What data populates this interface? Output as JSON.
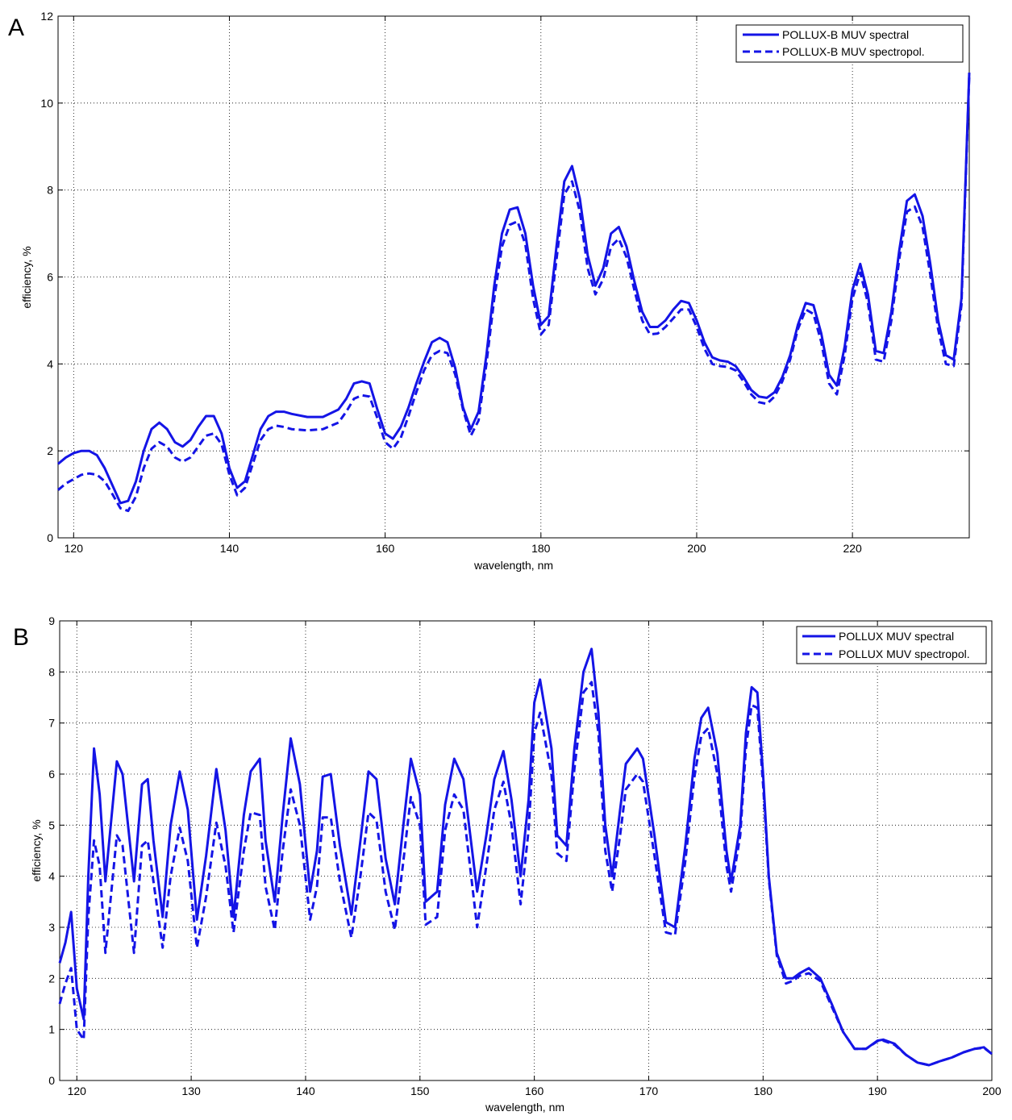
{
  "chart_data": [
    {
      "type": "line",
      "panel_label": "A",
      "xlabel": "wavelength, nm",
      "ylabel": "efficiency, %",
      "xlim": [
        118,
        235
      ],
      "ylim": [
        0,
        12
      ],
      "xticks": [
        120,
        140,
        160,
        180,
        200,
        220
      ],
      "yticks": [
        0,
        2,
        4,
        6,
        8,
        10,
        12
      ],
      "grid": true,
      "legend_position": "top-right",
      "color": "#1414e6",
      "series": [
        {
          "name": "POLLUX-B MUV spectral",
          "style": "solid",
          "x": [
            118,
            119,
            120,
            121,
            122,
            123,
            124,
            125,
            126,
            127,
            128,
            129,
            130,
            131,
            132,
            133,
            134,
            135,
            136,
            137,
            138,
            139,
            140,
            141,
            142,
            143,
            144,
            145,
            146,
            147,
            148,
            150,
            152,
            154,
            155,
            156,
            157,
            158,
            159,
            160,
            161,
            162,
            163,
            164,
            165,
            166,
            167,
            168,
            169,
            170,
            171,
            172,
            173,
            174,
            175,
            176,
            177,
            178,
            179,
            180,
            181,
            182,
            183,
            184,
            185,
            186,
            187,
            188,
            189,
            190,
            191,
            192,
            193,
            194,
            195,
            196,
            197,
            198,
            199,
            200,
            201,
            202,
            203,
            204,
            205,
            206,
            207,
            208,
            209,
            210,
            211,
            212,
            213,
            214,
            215,
            216,
            217,
            218,
            219,
            220,
            221,
            222,
            223,
            224,
            225,
            226,
            227,
            228,
            229,
            230,
            231,
            232,
            233,
            234,
            235
          ],
          "values": [
            1.7,
            1.85,
            1.95,
            2.0,
            2.0,
            1.9,
            1.6,
            1.2,
            0.8,
            0.85,
            1.3,
            2.0,
            2.5,
            2.65,
            2.5,
            2.2,
            2.1,
            2.25,
            2.55,
            2.8,
            2.8,
            2.4,
            1.6,
            1.15,
            1.3,
            1.9,
            2.5,
            2.8,
            2.9,
            2.9,
            2.85,
            2.78,
            2.78,
            2.95,
            3.2,
            3.55,
            3.6,
            3.55,
            2.95,
            2.4,
            2.28,
            2.55,
            3.0,
            3.55,
            4.05,
            4.5,
            4.6,
            4.5,
            3.9,
            3.0,
            2.5,
            2.9,
            4.2,
            5.8,
            7.0,
            7.55,
            7.6,
            7.0,
            5.8,
            4.9,
            5.1,
            6.7,
            8.2,
            8.55,
            7.8,
            6.5,
            5.8,
            6.2,
            7.0,
            7.15,
            6.7,
            5.9,
            5.2,
            4.85,
            4.85,
            5.0,
            5.25,
            5.45,
            5.4,
            5.0,
            4.5,
            4.15,
            4.08,
            4.05,
            3.95,
            3.7,
            3.4,
            3.25,
            3.22,
            3.35,
            3.7,
            4.2,
            4.9,
            5.4,
            5.35,
            4.7,
            3.75,
            3.5,
            4.4,
            5.7,
            6.3,
            5.6,
            4.3,
            4.25,
            5.2,
            6.6,
            7.75,
            7.9,
            7.4,
            6.3,
            5.0,
            4.2,
            4.1,
            5.5,
            10.7
          ]
        },
        {
          "name": "POLLUX-B MUV spectropol.",
          "style": "dashed",
          "x": [
            118,
            119,
            120,
            121,
            122,
            123,
            124,
            125,
            126,
            127,
            128,
            129,
            130,
            131,
            132,
            133,
            134,
            135,
            136,
            137,
            138,
            139,
            140,
            141,
            142,
            143,
            144,
            145,
            146,
            147,
            148,
            150,
            152,
            154,
            155,
            156,
            157,
            158,
            159,
            160,
            161,
            162,
            163,
            164,
            165,
            166,
            167,
            168,
            169,
            170,
            171,
            172,
            173,
            174,
            175,
            176,
            177,
            178,
            179,
            180,
            181,
            182,
            183,
            184,
            185,
            186,
            187,
            188,
            189,
            190,
            191,
            192,
            193,
            194,
            195,
            196,
            197,
            198,
            199,
            200,
            201,
            202,
            203,
            204,
            205,
            206,
            207,
            208,
            209,
            210,
            211,
            212,
            213,
            214,
            215,
            216,
            217,
            218,
            219,
            220,
            221,
            222,
            223,
            224,
            225,
            226,
            227,
            228,
            229,
            230,
            231,
            232,
            233,
            234,
            235
          ],
          "values": [
            1.1,
            1.25,
            1.35,
            1.45,
            1.48,
            1.45,
            1.3,
            1.0,
            0.68,
            0.62,
            0.95,
            1.6,
            2.05,
            2.2,
            2.1,
            1.85,
            1.75,
            1.85,
            2.1,
            2.35,
            2.4,
            2.15,
            1.45,
            0.98,
            1.15,
            1.7,
            2.25,
            2.5,
            2.58,
            2.55,
            2.5,
            2.47,
            2.5,
            2.65,
            2.9,
            3.2,
            3.28,
            3.25,
            2.75,
            2.2,
            2.05,
            2.3,
            2.8,
            3.35,
            3.85,
            4.2,
            4.3,
            4.25,
            3.75,
            2.95,
            2.35,
            2.7,
            4.0,
            5.5,
            6.7,
            7.2,
            7.28,
            6.75,
            5.5,
            4.68,
            4.9,
            6.4,
            7.9,
            8.2,
            7.5,
            6.2,
            5.6,
            5.95,
            6.7,
            6.88,
            6.45,
            5.7,
            5.0,
            4.68,
            4.7,
            4.85,
            5.05,
            5.25,
            5.25,
            4.85,
            4.35,
            4.0,
            3.95,
            3.93,
            3.85,
            3.6,
            3.3,
            3.12,
            3.08,
            3.25,
            3.6,
            4.1,
            4.8,
            5.25,
            5.15,
            4.5,
            3.55,
            3.3,
            4.2,
            5.5,
            6.1,
            5.4,
            4.1,
            4.05,
            5.0,
            6.4,
            7.5,
            7.62,
            7.15,
            6.05,
            4.8,
            4.0,
            3.95,
            5.35,
            10.65
          ]
        }
      ]
    },
    {
      "type": "line",
      "panel_label": "B",
      "xlabel": "wavelength, nm",
      "ylabel": "efficiency, %",
      "xlim": [
        118.5,
        200
      ],
      "ylim": [
        0,
        9
      ],
      "xticks": [
        120,
        130,
        140,
        150,
        160,
        170,
        180,
        190,
        200
      ],
      "yticks": [
        0,
        1,
        2,
        3,
        4,
        5,
        6,
        7,
        8,
        9
      ],
      "grid": true,
      "legend_position": "top-right",
      "color": "#1414e6",
      "series": [
        {
          "name": "POLLUX MUV spectral",
          "style": "solid",
          "x": [
            118.5,
            119.0,
            119.5,
            120.0,
            120.6,
            121.0,
            121.5,
            122.0,
            122.5,
            123.5,
            124.0,
            125.0,
            125.7,
            126.2,
            126.7,
            127.5,
            128.2,
            129.0,
            129.7,
            130.5,
            131.3,
            132.2,
            133.0,
            133.7,
            134.6,
            135.2,
            136.0,
            136.5,
            137.3,
            138.0,
            138.7,
            139.5,
            140.4,
            141.0,
            141.5,
            142.2,
            143.0,
            144.0,
            144.8,
            145.5,
            146.2,
            147.0,
            147.8,
            148.5,
            149.2,
            150.0,
            150.5,
            151.5,
            152.2,
            153.0,
            153.8,
            155.0,
            155.8,
            156.5,
            157.3,
            158.0,
            158.8,
            159.5,
            160.0,
            160.5,
            161.5,
            162.0,
            162.8,
            163.5,
            164.3,
            165.0,
            165.6,
            166.2,
            166.8,
            167.5,
            168.0,
            169.0,
            169.5,
            170.5,
            171.5,
            172.3,
            173.2,
            174.0,
            174.6,
            175.2,
            176.0,
            176.8,
            177.2,
            178.0,
            178.5,
            179.0,
            179.5,
            180.0,
            180.5,
            181.2,
            182.0,
            182.6,
            183.2,
            184.0,
            185.0,
            186.0,
            187.0,
            188.0,
            189.0,
            190.0,
            190.5,
            191.5,
            192.5,
            193.5,
            194.5,
            195.5,
            196.5,
            197.5,
            198.5,
            199.3,
            200.0
          ],
          "values": [
            2.3,
            2.7,
            3.3,
            1.8,
            1.2,
            4.0,
            6.5,
            5.6,
            3.9,
            6.25,
            6.0,
            3.9,
            5.8,
            5.9,
            4.7,
            3.2,
            5.0,
            6.05,
            5.3,
            3.15,
            4.4,
            6.1,
            4.9,
            3.2,
            5.2,
            6.05,
            6.3,
            4.7,
            3.5,
            5.2,
            6.7,
            5.8,
            3.7,
            4.5,
            5.95,
            6.0,
            4.6,
            3.25,
            4.7,
            6.05,
            5.9,
            4.35,
            3.45,
            4.9,
            6.3,
            5.6,
            3.5,
            3.7,
            5.4,
            6.3,
            5.9,
            3.7,
            4.8,
            5.9,
            6.45,
            5.5,
            4.0,
            5.5,
            7.4,
            7.85,
            6.5,
            4.8,
            4.6,
            6.5,
            8.0,
            8.45,
            7.2,
            5.0,
            4.0,
            5.3,
            6.2,
            6.5,
            6.3,
            4.8,
            3.1,
            3.0,
            4.6,
            6.3,
            7.1,
            7.3,
            6.4,
            4.5,
            3.9,
            5.0,
            6.8,
            7.7,
            7.6,
            6.0,
            4.0,
            2.5,
            2.0,
            2.0,
            2.1,
            2.2,
            2.0,
            1.5,
            0.95,
            0.62,
            0.62,
            0.78,
            0.8,
            0.72,
            0.5,
            0.35,
            0.3,
            0.38,
            0.45,
            0.55,
            0.62,
            0.65,
            0.52
          ]
        },
        {
          "name": "POLLUX MUV spectropol.",
          "style": "dashed",
          "x": [
            118.5,
            119.0,
            119.5,
            120.0,
            120.6,
            121.0,
            121.5,
            122.0,
            122.5,
            123.5,
            124.0,
            125.0,
            125.7,
            126.2,
            126.7,
            127.5,
            128.2,
            129.0,
            129.7,
            130.5,
            131.3,
            132.2,
            133.0,
            133.7,
            134.6,
            135.2,
            136.0,
            136.5,
            137.3,
            138.0,
            138.7,
            139.5,
            140.4,
            141.0,
            141.5,
            142.2,
            143.0,
            144.0,
            144.8,
            145.5,
            146.2,
            147.0,
            147.8,
            148.5,
            149.2,
            150.0,
            150.5,
            151.5,
            152.2,
            153.0,
            153.8,
            155.0,
            155.8,
            156.5,
            157.3,
            158.0,
            158.8,
            159.5,
            160.0,
            160.5,
            161.5,
            162.0,
            162.8,
            163.5,
            164.3,
            165.0,
            165.6,
            166.2,
            166.8,
            167.5,
            168.0,
            169.0,
            169.5,
            170.5,
            171.5,
            172.3,
            173.2,
            174.0,
            174.6,
            175.2,
            176.0,
            176.8,
            177.2,
            178.0,
            178.5,
            179.0,
            179.5,
            180.0,
            180.5,
            181.2,
            182.0,
            182.6,
            183.2,
            184.0,
            185.0,
            186.0,
            187.0,
            188.0,
            189.0,
            190.0,
            190.5,
            191.5,
            192.5,
            193.5,
            194.5,
            195.5,
            196.5,
            197.5,
            198.5,
            199.3,
            200.0
          ],
          "values": [
            1.5,
            1.9,
            2.2,
            1.0,
            0.8,
            3.2,
            4.7,
            4.2,
            2.5,
            4.8,
            4.6,
            2.5,
            4.6,
            4.7,
            3.9,
            2.6,
            4.0,
            4.95,
            4.3,
            2.6,
            3.6,
            5.05,
            4.2,
            2.9,
            4.5,
            5.25,
            5.2,
            3.8,
            2.95,
            4.5,
            5.7,
            5.0,
            3.15,
            3.8,
            5.15,
            5.15,
            3.9,
            2.8,
            4.0,
            5.25,
            5.1,
            3.7,
            2.95,
            4.2,
            5.55,
            5.0,
            3.05,
            3.2,
            4.9,
            5.6,
            5.3,
            3.0,
            4.2,
            5.3,
            5.85,
            5.0,
            3.45,
            4.9,
            6.8,
            7.2,
            6.0,
            4.45,
            4.3,
            6.1,
            7.6,
            7.8,
            6.8,
            4.5,
            3.7,
            4.8,
            5.7,
            6.0,
            5.85,
            4.4,
            2.9,
            2.85,
            4.3,
            5.95,
            6.75,
            6.9,
            6.0,
            4.2,
            3.7,
            4.8,
            6.5,
            7.35,
            7.3,
            5.8,
            3.95,
            2.45,
            1.9,
            1.95,
            2.05,
            2.1,
            1.95,
            1.45,
            0.95,
            0.62,
            0.62,
            0.77,
            0.78,
            0.7,
            0.5,
            0.35,
            0.3,
            0.38,
            0.45,
            0.55,
            0.62,
            0.64,
            0.52
          ]
        }
      ]
    }
  ]
}
